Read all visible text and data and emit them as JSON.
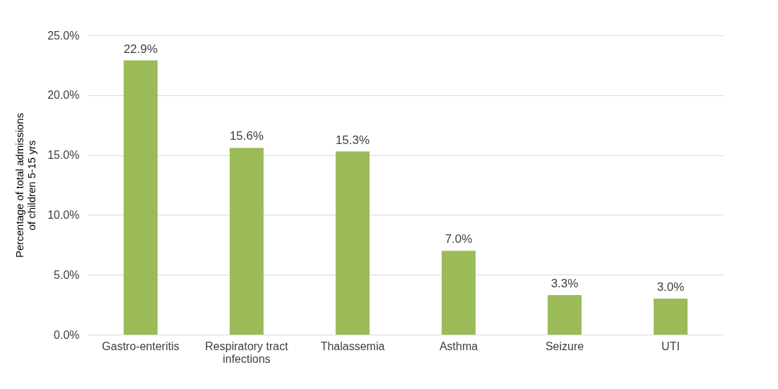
{
  "chart_data": {
    "type": "bar",
    "ylabel": "Percentage of total admissions of children 5-15 yrs",
    "categories": [
      "Gastro-enteritis",
      "Respiratory tract infections",
      "Thalassemia",
      "Asthma",
      "Seizure",
      "UTI"
    ],
    "values": [
      22.9,
      15.6,
      15.3,
      7.0,
      3.3,
      3.0
    ],
    "value_labels": [
      "22.9%",
      "15.6%",
      "15.3%",
      "7.0%",
      "3.3%",
      "3.0%"
    ],
    "color": "#9bbb59",
    "ylim": [
      0,
      25
    ],
    "yticks": [
      {
        "value": 0,
        "label": "0.0%"
      },
      {
        "value": 5,
        "label": "5.0%"
      },
      {
        "value": 10,
        "label": "10.0%"
      },
      {
        "value": 15,
        "label": "15.0%"
      },
      {
        "value": 20,
        "label": "20.0%"
      },
      {
        "value": 25,
        "label": "25.0%"
      }
    ],
    "grid": "y"
  }
}
